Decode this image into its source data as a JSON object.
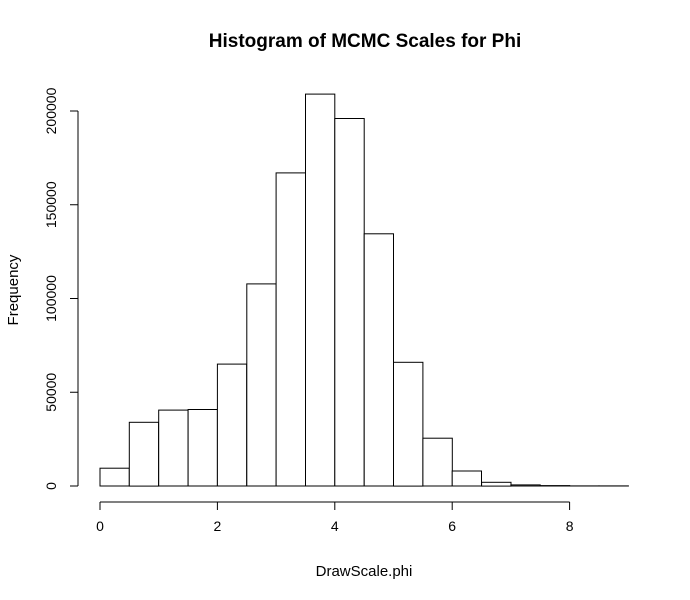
{
  "chart_data": {
    "type": "bar",
    "title": "Histogram of MCMC Scales for Phi",
    "xlabel": "DrawScale.phi",
    "ylabel": "Frequency",
    "bin_edges": [
      0,
      0.5,
      1,
      1.5,
      2,
      2.5,
      3,
      3.5,
      4,
      4.5,
      5,
      5.5,
      6,
      6.5,
      7,
      7.5,
      8,
      8.5,
      9
    ],
    "values": [
      9500,
      34000,
      40500,
      40800,
      65000,
      107800,
      167000,
      209000,
      196000,
      134500,
      66000,
      25500,
      8000,
      2000,
      600,
      200,
      80,
      30
    ],
    "x_ticks": [
      0,
      2,
      4,
      6,
      8
    ],
    "x_tick_labels": [
      "0",
      "2",
      "4",
      "6",
      "8"
    ],
    "y_ticks": [
      0,
      50000,
      100000,
      150000,
      200000
    ],
    "y_tick_labels": [
      "0",
      "50000",
      "100000",
      "150000",
      "200000"
    ],
    "xlim": [
      0,
      9
    ],
    "ylim": [
      0,
      200000
    ],
    "grid": false,
    "legend": "none"
  }
}
